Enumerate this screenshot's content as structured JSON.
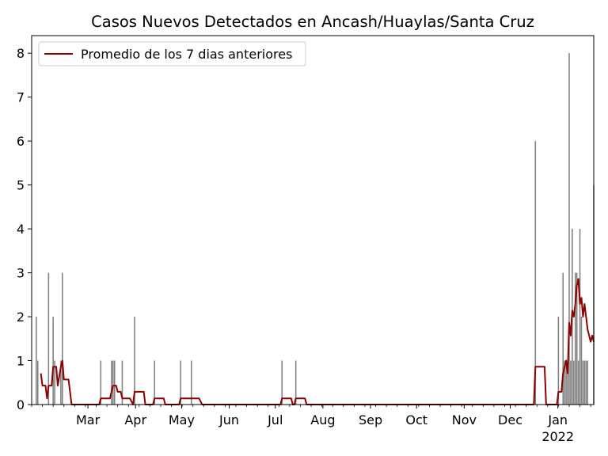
{
  "chart_data": {
    "type": "bar",
    "title": "Casos Nuevos Detectados en Ancash/Huaylas/Santa Cruz",
    "xlabel": "",
    "ylabel": "",
    "ylim": [
      0,
      8.4
    ],
    "y_ticks": [
      0,
      1,
      2,
      3,
      4,
      5,
      6,
      7,
      8
    ],
    "x_range": [
      "2021-01-28",
      "2022-01-29"
    ],
    "x_ticks": [
      {
        "date": "2021-03-01",
        "label": "Mar"
      },
      {
        "date": "2021-04-01",
        "label": "Apr"
      },
      {
        "date": "2021-05-01",
        "label": "May"
      },
      {
        "date": "2021-06-01",
        "label": "Jun"
      },
      {
        "date": "2021-07-01",
        "label": "Jul"
      },
      {
        "date": "2021-08-01",
        "label": "Aug"
      },
      {
        "date": "2021-09-01",
        "label": "Sep"
      },
      {
        "date": "2021-10-01",
        "label": "Oct"
      },
      {
        "date": "2021-11-01",
        "label": "Nov"
      },
      {
        "date": "2021-12-01",
        "label": "Dec"
      },
      {
        "date": "2022-01-01",
        "label": "Jan"
      }
    ],
    "year_label": {
      "date": "2022-01-01",
      "label": "2022"
    },
    "grid": false,
    "legend_position": "top-left",
    "bar_color": "#808080",
    "line_color": "#8b0000",
    "series": [
      {
        "type": "bar",
        "x": [
          "2021-01-31",
          "2021-02-01",
          "2021-02-08",
          "2021-02-11",
          "2021-02-12",
          "2021-02-16",
          "2021-02-17",
          "2021-03-14",
          "2021-03-21",
          "2021-03-22",
          "2021-03-23",
          "2021-03-28",
          "2021-04-05",
          "2021-04-18",
          "2021-05-05",
          "2021-05-12",
          "2021-07-10",
          "2021-07-19",
          "2021-12-22",
          "2022-01-06",
          "2022-01-09",
          "2022-01-10",
          "2022-01-11",
          "2022-01-12",
          "2022-01-13",
          "2022-01-14",
          "2022-01-15",
          "2022-01-16",
          "2022-01-17",
          "2022-01-18",
          "2022-01-19",
          "2022-01-20",
          "2022-01-21",
          "2022-01-22",
          "2022-01-23",
          "2022-01-24",
          "2022-01-25",
          "2022-01-29"
        ],
        "values": [
          2,
          1,
          3,
          2,
          1,
          1,
          3,
          1,
          1,
          1,
          1,
          1,
          2,
          1,
          1,
          1,
          1,
          1,
          6,
          2,
          3,
          1,
          1,
          1,
          8,
          1,
          4,
          1,
          3,
          3,
          1,
          4,
          2,
          1,
          1,
          1,
          1,
          5
        ]
      },
      {
        "type": "line",
        "name": "Promedio de los 7 dias anteriores",
        "points": [
          [
            "2021-02-03",
            0.71
          ],
          [
            "2021-02-04",
            0.43
          ],
          [
            "2021-02-06",
            0.43
          ],
          [
            "2021-02-07",
            0.14
          ],
          [
            "2021-02-08",
            0.43
          ],
          [
            "2021-02-10",
            0.43
          ],
          [
            "2021-02-11",
            0.86
          ],
          [
            "2021-02-13",
            0.86
          ],
          [
            "2021-02-14",
            0.43
          ],
          [
            "2021-02-16",
            0.86
          ],
          [
            "2021-02-17",
            1.0
          ],
          [
            "2021-02-18",
            0.57
          ],
          [
            "2021-02-21",
            0.57
          ],
          [
            "2021-02-23",
            0.0
          ],
          [
            "2021-03-13",
            0.0
          ],
          [
            "2021-03-14",
            0.14
          ],
          [
            "2021-03-20",
            0.14
          ],
          [
            "2021-03-21",
            0.29
          ],
          [
            "2021-03-22",
            0.43
          ],
          [
            "2021-03-24",
            0.43
          ],
          [
            "2021-03-25",
            0.29
          ],
          [
            "2021-03-27",
            0.29
          ],
          [
            "2021-03-28",
            0.14
          ],
          [
            "2021-04-02",
            0.14
          ],
          [
            "2021-04-04",
            0.0
          ],
          [
            "2021-04-05",
            0.29
          ],
          [
            "2021-04-11",
            0.29
          ],
          [
            "2021-04-12",
            0.0
          ],
          [
            "2021-04-17",
            0.0
          ],
          [
            "2021-04-18",
            0.14
          ],
          [
            "2021-04-24",
            0.14
          ],
          [
            "2021-04-25",
            0.0
          ],
          [
            "2021-05-04",
            0.0
          ],
          [
            "2021-05-05",
            0.14
          ],
          [
            "2021-05-17",
            0.14
          ],
          [
            "2021-05-19",
            0.0
          ],
          [
            "2021-07-09",
            0.0
          ],
          [
            "2021-07-10",
            0.14
          ],
          [
            "2021-07-16",
            0.14
          ],
          [
            "2021-07-17",
            0.0
          ],
          [
            "2021-07-18",
            0.0
          ],
          [
            "2021-07-19",
            0.14
          ],
          [
            "2021-07-25",
            0.14
          ],
          [
            "2021-07-26",
            0.0
          ],
          [
            "2021-12-21",
            0.0
          ],
          [
            "2021-12-22",
            0.86
          ],
          [
            "2021-12-28",
            0.86
          ],
          [
            "2021-12-29",
            0.0
          ],
          [
            "2022-01-05",
            0.0
          ],
          [
            "2022-01-06",
            0.29
          ],
          [
            "2022-01-08",
            0.29
          ],
          [
            "2022-01-09",
            0.71
          ],
          [
            "2022-01-10",
            0.86
          ],
          [
            "2022-01-11",
            1.0
          ],
          [
            "2022-01-12",
            0.71
          ],
          [
            "2022-01-13",
            1.86
          ],
          [
            "2022-01-14",
            1.57
          ],
          [
            "2022-01-15",
            2.14
          ],
          [
            "2022-01-16",
            2.0
          ],
          [
            "2022-01-17",
            2.29
          ],
          [
            "2022-01-18",
            2.71
          ],
          [
            "2022-01-19",
            2.86
          ],
          [
            "2022-01-20",
            2.29
          ],
          [
            "2022-01-21",
            2.43
          ],
          [
            "2022-01-22",
            2.0
          ],
          [
            "2022-01-23",
            2.29
          ],
          [
            "2022-01-24",
            2.0
          ],
          [
            "2022-01-25",
            1.71
          ],
          [
            "2022-01-26",
            1.57
          ],
          [
            "2022-01-27",
            1.43
          ],
          [
            "2022-01-28",
            1.57
          ],
          [
            "2022-01-29",
            1.43
          ]
        ]
      }
    ]
  }
}
